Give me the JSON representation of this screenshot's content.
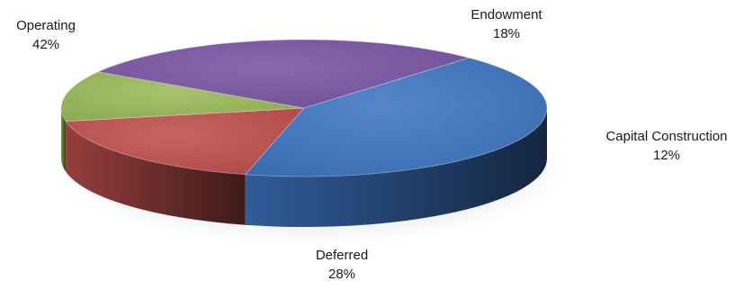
{
  "chart_data": {
    "type": "pie",
    "style": "3d",
    "title": "",
    "slices": [
      {
        "name": "Endowment",
        "value": 18,
        "label": "18%",
        "color": "#c0504d"
      },
      {
        "name": "Capital Construction",
        "value": 12,
        "label": "12%",
        "color": "#9bbb59"
      },
      {
        "name": "Deferred",
        "value": 28,
        "label": "28%",
        "color": "#7b55a6"
      },
      {
        "name": "Operating",
        "value": 42,
        "label": "42%",
        "color": "#3e76c4"
      }
    ]
  }
}
